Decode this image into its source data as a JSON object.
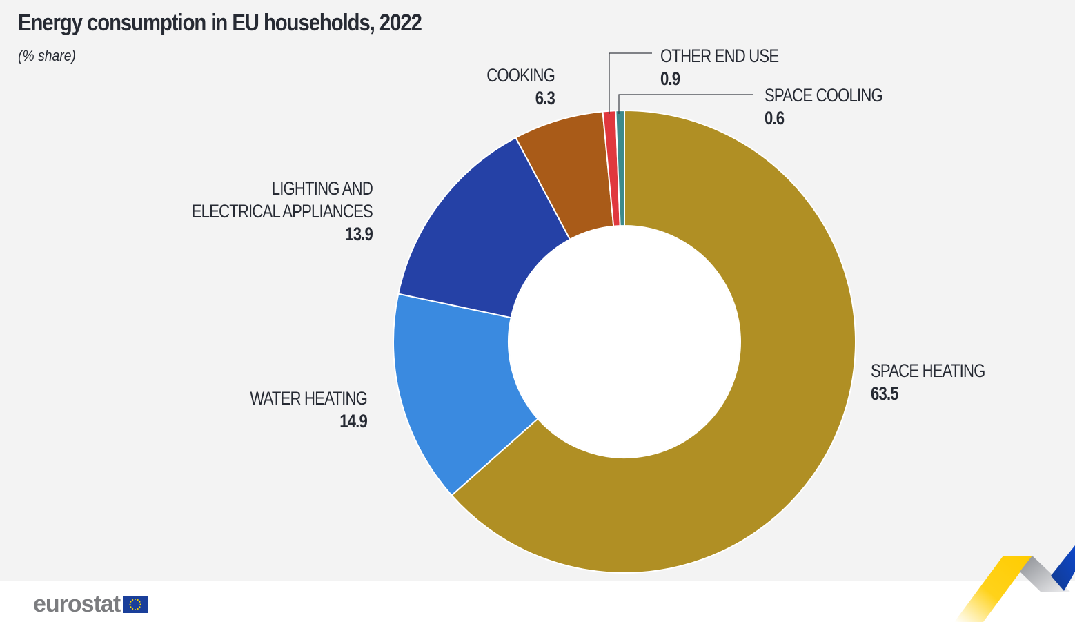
{
  "header": {
    "title": "Energy consumption in EU households, 2022",
    "subtitle": "(% share)"
  },
  "chart_data": {
    "type": "pie",
    "subtype": "donut",
    "title": "Energy consumption in EU households, 2022",
    "subtitle": "(% share)",
    "unit": "%",
    "slices": [
      {
        "label": "SPACE HEATING",
        "value": 63.5,
        "color": "#b08f24"
      },
      {
        "label": "WATER HEATING",
        "value": 14.9,
        "color": "#3a8ae0"
      },
      {
        "label": "LIGHTING AND ELECTRICAL APPLIANCES",
        "label_lines": [
          "LIGHTING AND",
          "ELECTRICAL APPLIANCES"
        ],
        "value": 13.9,
        "color": "#2541a6"
      },
      {
        "label": "COOKING",
        "value": 6.3,
        "color": "#a95b18"
      },
      {
        "label": "OTHER END USE",
        "value": 0.9,
        "color": "#e0383e"
      },
      {
        "label": "SPACE COOLING",
        "value": 0.6,
        "color": "#3e8a8c"
      }
    ],
    "direction": "clockwise",
    "start": "top",
    "legend": "none"
  },
  "footer": {
    "logo_text": "eurostat"
  }
}
